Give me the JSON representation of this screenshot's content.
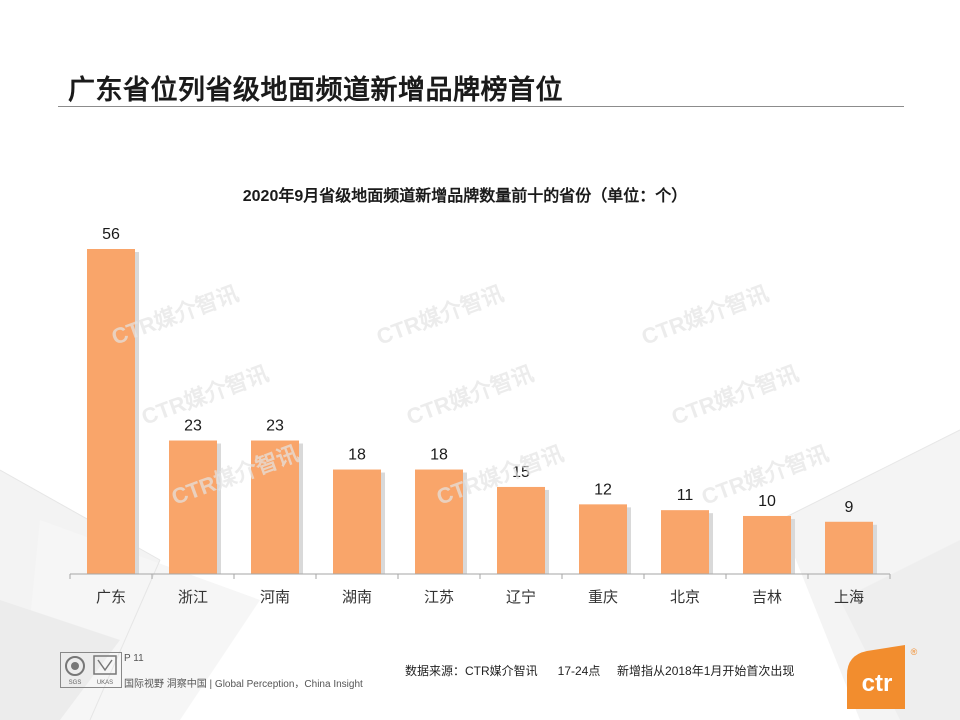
{
  "page": {
    "title": "广东省位列省级地面频道新增品牌榜首位"
  },
  "chart_data": {
    "type": "bar",
    "title": "2020年9月省级地面频道新增品牌数量前十的省份（单位：个）",
    "categories": [
      "广东",
      "浙江",
      "河南",
      "湖南",
      "江苏",
      "辽宁",
      "重庆",
      "北京",
      "吉林",
      "上海"
    ],
    "values": [
      56,
      23,
      23,
      18,
      18,
      15,
      12,
      11,
      10,
      9
    ],
    "ylim": [
      0,
      60
    ],
    "xlabel": "",
    "ylabel": "",
    "grid": false,
    "bar_color": "#f9a56a"
  },
  "watermark": {
    "text": "CTR媒介智讯"
  },
  "footer": {
    "page_number": "P 11",
    "slogan": "国际视野 洞察中国 | Global Perception，China Insight",
    "source_note": "数据来源：CTR媒介智讯      17-24点     新增指从2018年1月开始首次出现",
    "brand": "ctr",
    "brand_mark": "®",
    "cert_text": "SGS",
    "cert_text2": "UKAS"
  },
  "colors": {
    "accent": "#f28d2e",
    "bar": "#f9a56a"
  }
}
